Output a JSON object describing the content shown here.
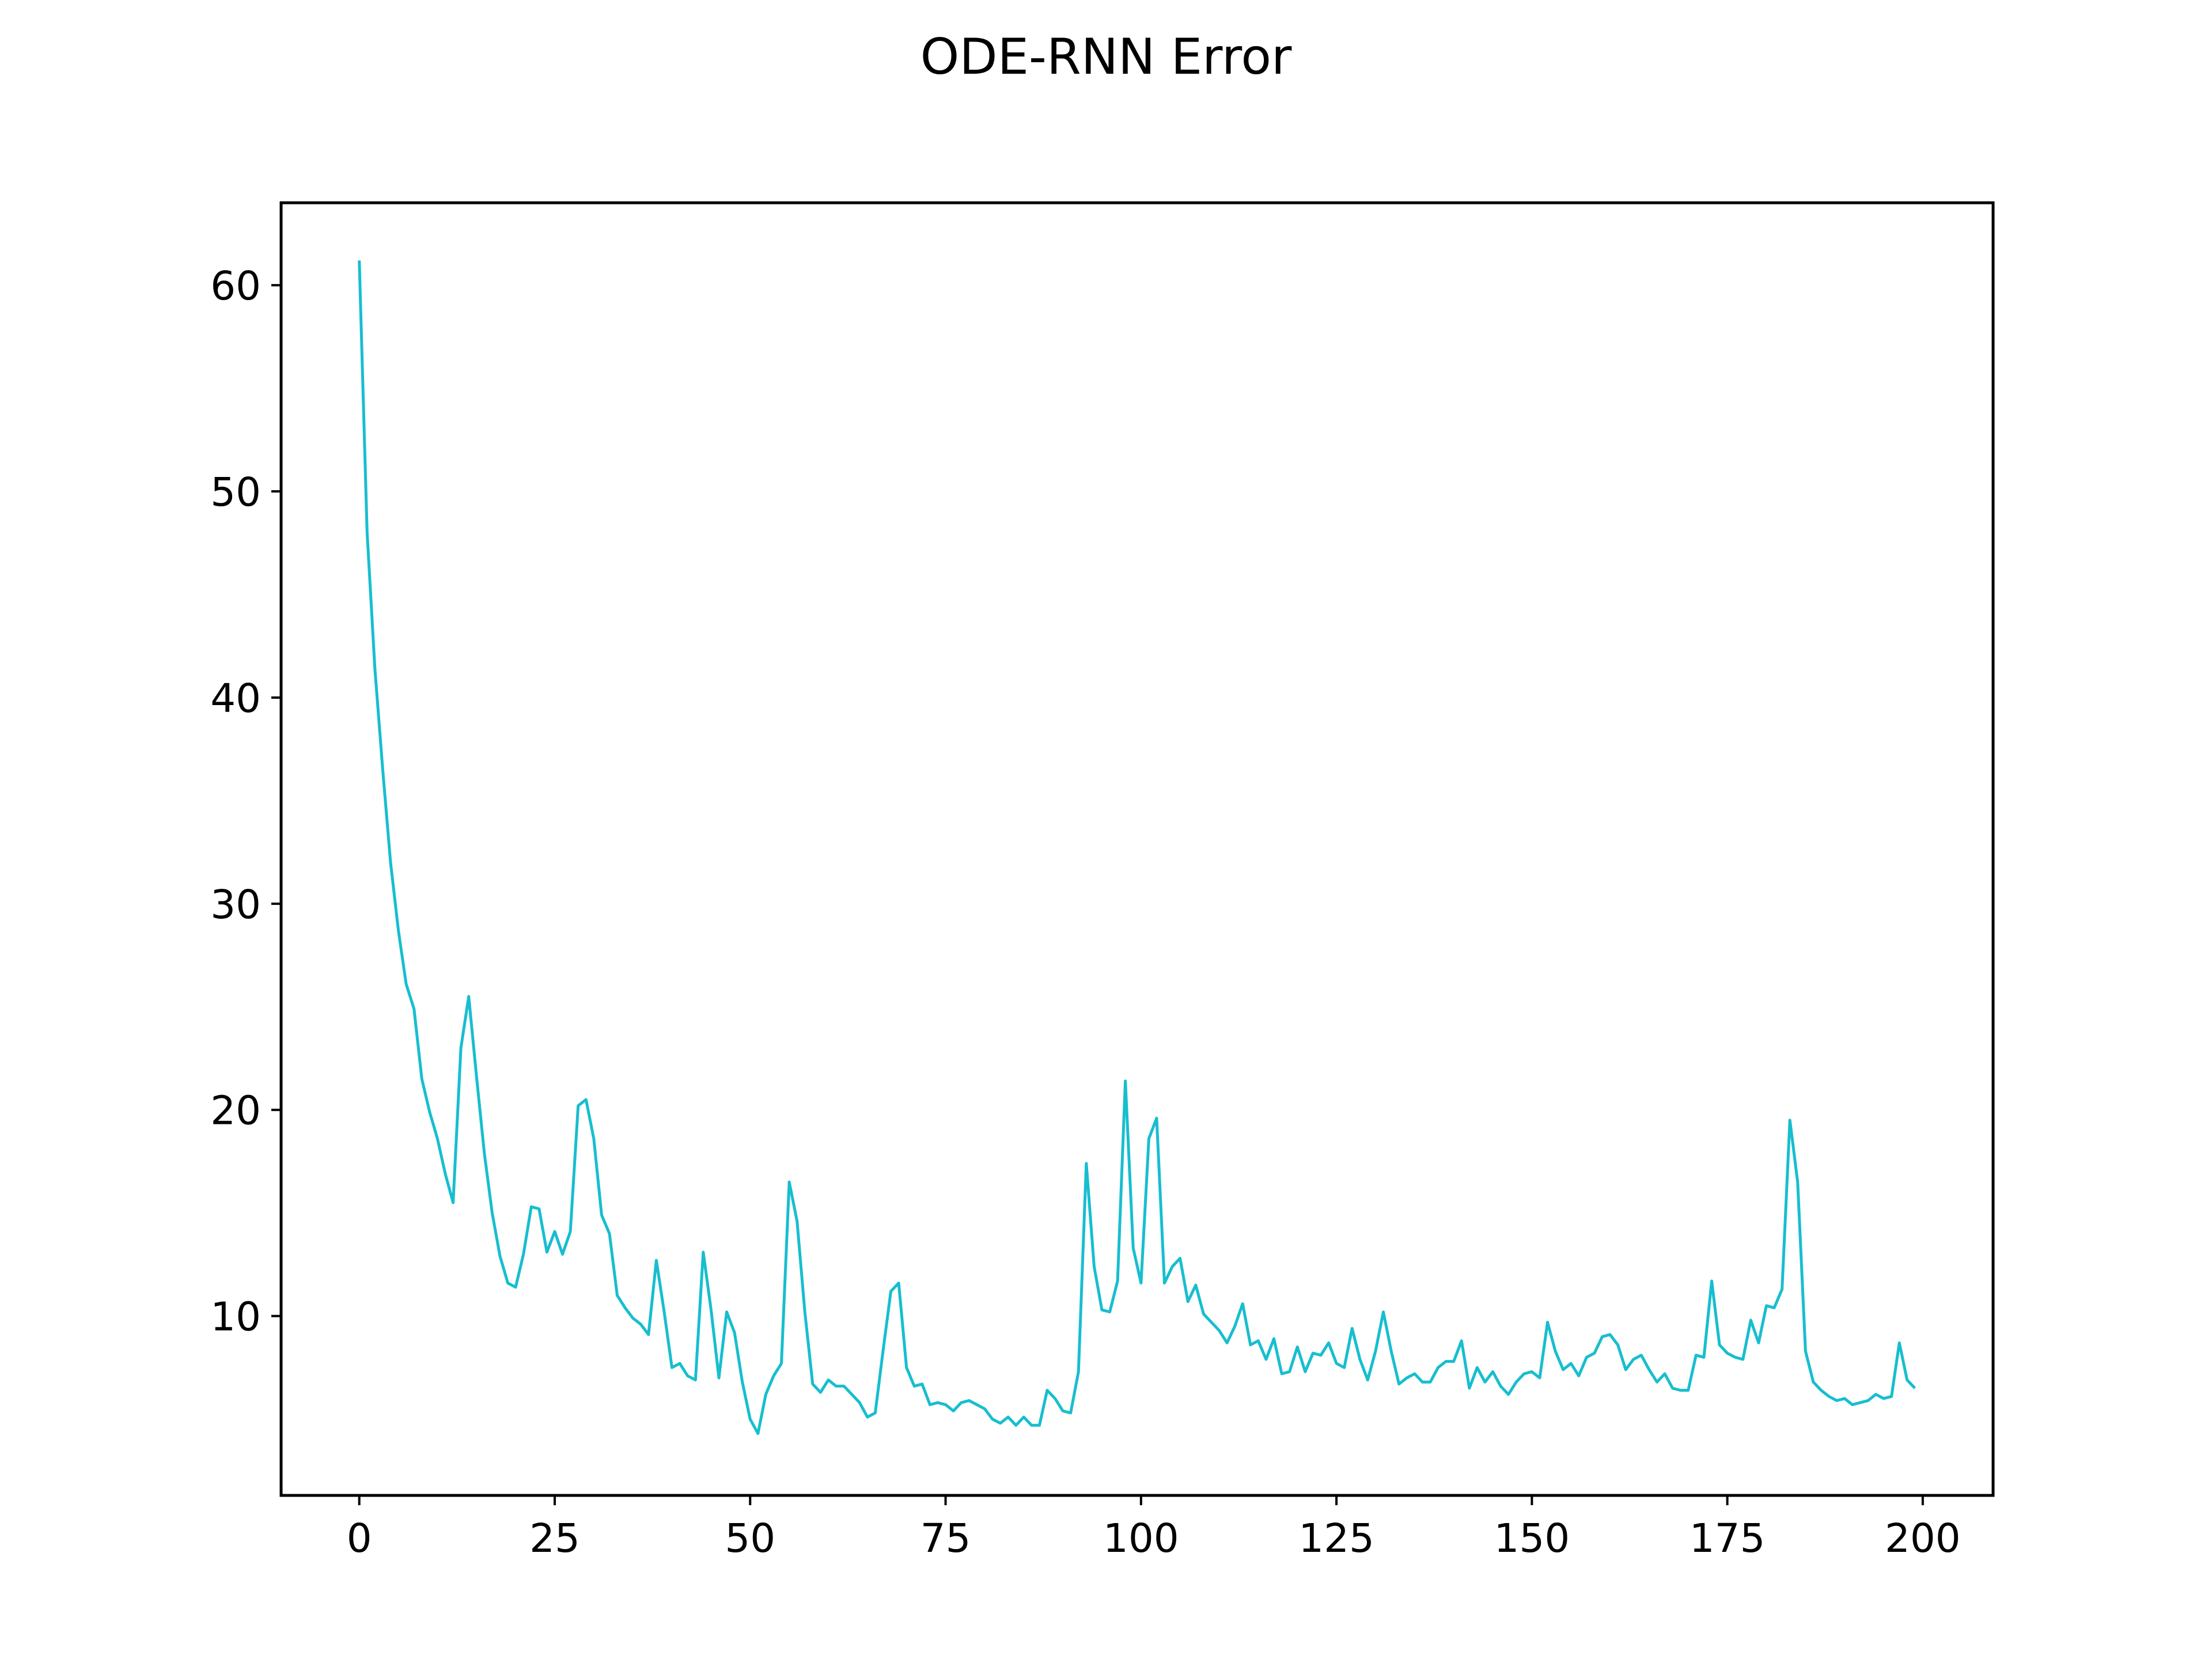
{
  "chart_data": {
    "type": "line",
    "title": "ODE-RNN Error",
    "xlabel": "",
    "ylabel": "",
    "xlim": [
      -10,
      209
    ],
    "ylim": [
      1.3,
      64.0
    ],
    "xticks": [
      0,
      25,
      50,
      75,
      100,
      125,
      150,
      175,
      200
    ],
    "yticks": [
      10,
      20,
      30,
      40,
      50,
      60
    ],
    "grid": false,
    "legend": "none",
    "series": [
      {
        "color": "#17becf",
        "x_start": 0,
        "x_step": 1,
        "values": [
          61.2,
          48.0,
          41.4,
          36.5,
          32.0,
          28.7,
          26.1,
          24.9,
          21.5,
          19.9,
          18.6,
          16.9,
          15.5,
          23.0,
          25.5,
          21.6,
          17.9,
          15.0,
          12.9,
          11.6,
          11.4,
          13.0,
          15.3,
          15.2,
          13.1,
          14.1,
          13.0,
          14.1,
          20.2,
          20.5,
          18.6,
          14.9,
          14.0,
          11.0,
          10.4,
          9.9,
          9.6,
          9.1,
          12.7,
          10.2,
          7.5,
          7.7,
          7.1,
          6.9,
          13.1,
          10.3,
          7.0,
          10.2,
          9.2,
          6.8,
          5.0,
          4.3,
          6.2,
          7.1,
          7.7,
          16.5,
          14.6,
          10.2,
          6.7,
          6.3,
          6.9,
          6.6,
          6.6,
          6.2,
          5.8,
          5.1,
          5.3,
          8.3,
          11.2,
          11.6,
          7.5,
          6.6,
          6.7,
          5.7,
          5.8,
          5.7,
          5.4,
          5.8,
          5.9,
          5.7,
          5.5,
          5.0,
          4.8,
          5.1,
          4.7,
          5.1,
          4.7,
          4.7,
          6.4,
          6.0,
          5.4,
          5.3,
          7.3,
          17.4,
          12.4,
          10.3,
          10.2,
          11.7,
          21.4,
          13.3,
          11.6,
          18.6,
          19.6,
          11.6,
          12.4,
          12.8,
          10.7,
          11.5,
          10.1,
          9.7,
          9.3,
          8.7,
          9.5,
          10.6,
          8.6,
          8.8,
          7.9,
          8.9,
          7.2,
          7.3,
          8.5,
          7.3,
          8.2,
          8.1,
          8.7,
          7.7,
          7.5,
          9.4,
          7.9,
          6.9,
          8.3,
          10.2,
          8.3,
          6.7,
          7.0,
          7.2,
          6.8,
          6.8,
          7.5,
          7.8,
          7.8,
          8.8,
          6.5,
          7.5,
          6.8,
          7.3,
          6.6,
          6.2,
          6.8,
          7.2,
          7.3,
          7.0,
          9.7,
          8.3,
          7.4,
          7.7,
          7.1,
          8.0,
          8.2,
          9.0,
          9.1,
          8.6,
          7.4,
          7.9,
          8.1,
          7.4,
          6.8,
          7.2,
          6.5,
          6.4,
          6.4,
          8.1,
          8.0,
          11.7,
          8.6,
          8.2,
          8.0,
          7.9,
          9.8,
          8.7,
          10.5,
          10.4,
          11.3,
          19.5,
          16.5,
          8.3,
          6.8,
          6.4,
          6.1,
          5.9,
          6.0,
          5.7,
          5.8,
          5.9,
          6.2,
          6.0,
          6.1,
          8.7,
          6.9,
          6.5
        ]
      }
    ]
  }
}
